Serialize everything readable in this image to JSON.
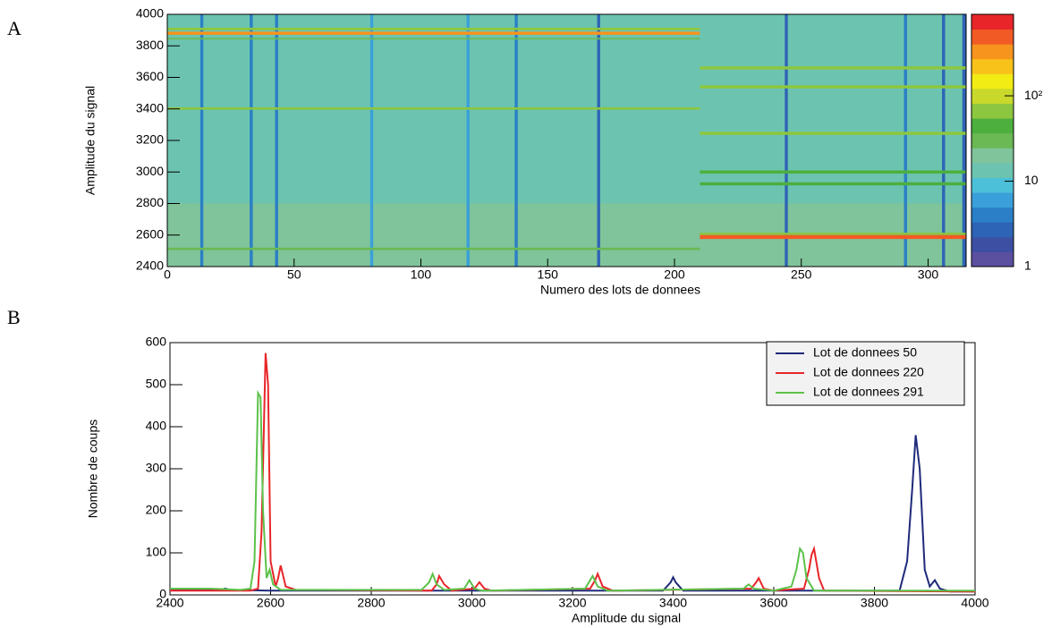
{
  "chart_data": [
    {
      "type": "heatmap",
      "panel": "A",
      "ylabel": "Amplitude du signal",
      "xlabel": "Numero des lots de donnees",
      "xlim": [
        0,
        315
      ],
      "xticks": [
        0,
        50,
        100,
        150,
        200,
        250,
        300
      ],
      "ylim": [
        2400,
        4000
      ],
      "yticks": [
        2400,
        2600,
        2800,
        3000,
        3200,
        3400,
        3600,
        3800,
        4000
      ],
      "zlim": [
        1,
        900
      ],
      "zlog": true,
      "zticks": [
        1,
        10,
        {
          "value": 100,
          "label": "10²"
        }
      ],
      "colormap": [
        "#5b4fa0",
        "#3d4fa3",
        "#2e64b5",
        "#2a7fc6",
        "#3aa0da",
        "#4cc0d8",
        "#6cc4b0",
        "#7fc49a",
        "#6ab955",
        "#4daf3e",
        "#8dc63f",
        "#c8d92b",
        "#f2eb14",
        "#f8c21a",
        "#f7941d",
        "#f15a24",
        "#e8262a"
      ],
      "cells": [
        {
          "x": [
            0,
            315
          ],
          "y": [
            2400,
            4000
          ],
          "value": 14
        },
        {
          "x": [
            0,
            315
          ],
          "y": [
            2400,
            2800
          ],
          "value": 20
        },
        {
          "x": [
            13,
            14.2
          ],
          "y": [
            2400,
            4000
          ],
          "value": 4
        },
        {
          "x": [
            32.5,
            33.7
          ],
          "y": [
            2400,
            4000
          ],
          "value": 4
        },
        {
          "x": [
            42.5,
            43.7
          ],
          "y": [
            2400,
            4000
          ],
          "value": 4
        },
        {
          "x": [
            80,
            81.2
          ],
          "y": [
            2400,
            4000
          ],
          "value": 5
        },
        {
          "x": [
            118,
            119.2
          ],
          "y": [
            2400,
            4000
          ],
          "value": 5
        },
        {
          "x": [
            137,
            138.2
          ],
          "y": [
            2400,
            4000
          ],
          "value": 4
        },
        {
          "x": [
            169.5,
            170.7
          ],
          "y": [
            2400,
            4000
          ],
          "value": 3
        },
        {
          "x": [
            243.5,
            244.7
          ],
          "y": [
            2400,
            4000
          ],
          "value": 3
        },
        {
          "x": [
            290.5,
            291.7
          ],
          "y": [
            2400,
            4000
          ],
          "value": 4
        },
        {
          "x": [
            305.5,
            306.7
          ],
          "y": [
            2400,
            4000
          ],
          "value": 3
        },
        {
          "x": [
            313.5,
            315
          ],
          "y": [
            2400,
            4000
          ],
          "value": 3
        },
        {
          "x": [
            0,
            210
          ],
          "y": [
            3870,
            3890
          ],
          "value": 400
        },
        {
          "x": [
            0,
            210
          ],
          "y": [
            3900,
            3915
          ],
          "value": 60
        },
        {
          "x": [
            0,
            210
          ],
          "y": [
            3840,
            3850
          ],
          "value": 30
        },
        {
          "x": [
            0,
            210
          ],
          "y": [
            3395,
            3410
          ],
          "value": 70
        },
        {
          "x": [
            0,
            210
          ],
          "y": [
            2505,
            2520
          ],
          "value": 35
        },
        {
          "x": [
            210,
            315
          ],
          "y": [
            3650,
            3670
          ],
          "value": 70
        },
        {
          "x": [
            210,
            315
          ],
          "y": [
            3530,
            3550
          ],
          "value": 55
        },
        {
          "x": [
            210,
            315
          ],
          "y": [
            3235,
            3255
          ],
          "value": 60
        },
        {
          "x": [
            210,
            315
          ],
          "y": [
            2990,
            3010
          ],
          "value": 50
        },
        {
          "x": [
            210,
            315
          ],
          "y": [
            2915,
            2935
          ],
          "value": 45
        },
        {
          "x": [
            210,
            315
          ],
          "y": [
            2600,
            2615
          ],
          "value": 80
        },
        {
          "x": [
            210,
            315
          ],
          "y": [
            2575,
            2600
          ],
          "value": 500
        }
      ]
    },
    {
      "type": "line",
      "panel": "B",
      "ylabel": "Nombre de coups",
      "xlabel": "Amplitude du signal",
      "xlim": [
        2400,
        4000
      ],
      "xticks": [
        2400,
        2600,
        2800,
        3000,
        3200,
        3400,
        3600,
        3800,
        4000
      ],
      "ylim": [
        0,
        600
      ],
      "yticks": [
        0,
        100,
        200,
        300,
        400,
        500,
        600
      ],
      "legend": "top-right",
      "series": [
        {
          "name": "Lot de donnees 50",
          "color": "#1f2a7a",
          "x": [
            2400,
            2500,
            2510,
            2520,
            2600,
            3000,
            3380,
            3395,
            3400,
            3405,
            3420,
            3800,
            3850,
            3865,
            3875,
            3882,
            3890,
            3900,
            3910,
            3920,
            3930,
            3950,
            4000
          ],
          "values": [
            12,
            12,
            15,
            12,
            10,
            10,
            10,
            30,
            42,
            30,
            10,
            10,
            10,
            80,
            250,
            380,
            300,
            60,
            20,
            35,
            15,
            8,
            8
          ]
        },
        {
          "name": "Lot de donnees 220",
          "color": "#e8262a",
          "x": [
            2400,
            2560,
            2575,
            2582,
            2590,
            2595,
            2600,
            2610,
            2615,
            2620,
            2630,
            2650,
            2920,
            2930,
            2935,
            2945,
            2960,
            3005,
            3015,
            3025,
            3040,
            3235,
            3245,
            3250,
            3260,
            3280,
            3555,
            3565,
            3570,
            3580,
            3600,
            3660,
            3670,
            3675,
            3680,
            3690,
            3700,
            4000
          ],
          "values": [
            10,
            10,
            15,
            150,
            575,
            500,
            80,
            20,
            40,
            70,
            20,
            12,
            10,
            25,
            45,
            25,
            10,
            15,
            30,
            15,
            10,
            15,
            35,
            50,
            20,
            10,
            15,
            30,
            40,
            15,
            10,
            15,
            60,
            95,
            110,
            40,
            10,
            8
          ]
        },
        {
          "name": "Lot de donnees 291",
          "color": "#5cc24a",
          "x": [
            2400,
            2480,
            2540,
            2560,
            2568,
            2575,
            2580,
            2585,
            2592,
            2598,
            2605,
            2620,
            2900,
            2915,
            2922,
            2930,
            2945,
            2985,
            2995,
            3005,
            3020,
            3225,
            3235,
            3240,
            3250,
            3270,
            3540,
            3550,
            3560,
            3600,
            3635,
            3645,
            3652,
            3658,
            3665,
            3680,
            4000
          ],
          "values": [
            15,
            15,
            12,
            15,
            80,
            480,
            470,
            200,
            40,
            60,
            25,
            12,
            12,
            30,
            50,
            25,
            12,
            15,
            35,
            15,
            10,
            15,
            35,
            45,
            20,
            10,
            15,
            25,
            15,
            10,
            20,
            60,
            110,
            100,
            40,
            10,
            10
          ]
        }
      ]
    }
  ]
}
